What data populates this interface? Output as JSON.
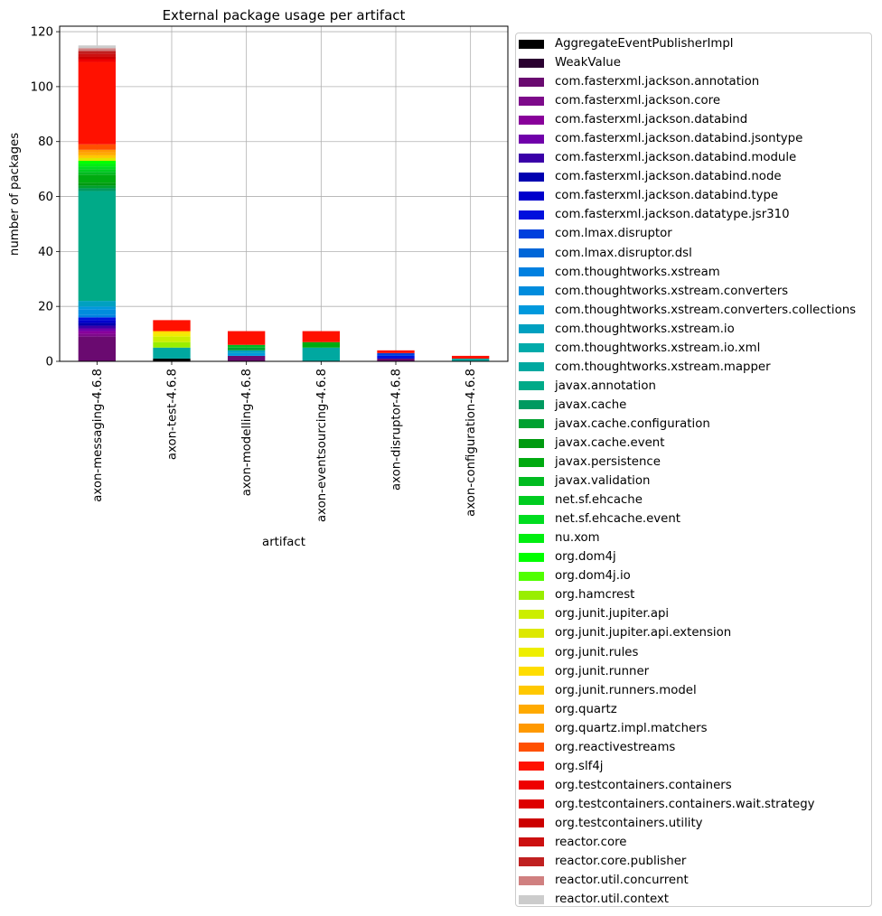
{
  "chart_data": {
    "type": "bar",
    "stacked": true,
    "title": "External package usage per artifact",
    "xlabel": "artifact",
    "ylabel": "number of packages",
    "ylim": [
      0,
      122
    ],
    "yticks": [
      0,
      20,
      40,
      60,
      80,
      100,
      120
    ],
    "grid": true,
    "legend_position": "outside-right",
    "categories": [
      "axon-messaging-4.6.8",
      "axon-test-4.6.8",
      "axon-modelling-4.6.8",
      "axon-eventsourcing-4.6.8",
      "axon-disruptor-4.6.8",
      "axon-configuration-4.6.8"
    ],
    "series": [
      {
        "name": "AggregateEventPublisherImpl",
        "color": "#000000",
        "values": [
          0,
          1,
          0,
          0,
          0,
          0
        ]
      },
      {
        "name": "WeakValue",
        "color": "#2a0030",
        "values": [
          0,
          0,
          0,
          0,
          0,
          0
        ]
      },
      {
        "name": "com.fasterxml.jackson.annotation",
        "color": "#6a0a70",
        "values": [
          9,
          0,
          2,
          0,
          1,
          0
        ]
      },
      {
        "name": "com.fasterxml.jackson.core",
        "color": "#7d0a8a",
        "values": [
          1,
          0,
          0,
          0,
          0,
          0
        ]
      },
      {
        "name": "com.fasterxml.jackson.databind",
        "color": "#88009a",
        "values": [
          1,
          0,
          0,
          0,
          0,
          0
        ]
      },
      {
        "name": "com.fasterxml.jackson.databind.jsontype",
        "color": "#7000aa",
        "values": [
          1,
          0,
          0,
          0,
          0,
          0
        ]
      },
      {
        "name": "com.fasterxml.jackson.databind.module",
        "color": "#3a00a8",
        "values": [
          1,
          0,
          0,
          0,
          0,
          0
        ]
      },
      {
        "name": "com.fasterxml.jackson.databind.node",
        "color": "#0000b0",
        "values": [
          1,
          0,
          0,
          0,
          0,
          0
        ]
      },
      {
        "name": "com.fasterxml.jackson.databind.type",
        "color": "#0000cc",
        "values": [
          1,
          0,
          0,
          0,
          0,
          0
        ]
      },
      {
        "name": "com.fasterxml.jackson.datatype.jsr310",
        "color": "#0010dd",
        "values": [
          1,
          0,
          0,
          0,
          1,
          0
        ]
      },
      {
        "name": "com.lmax.disruptor",
        "color": "#0040dd",
        "values": [
          0,
          0,
          0,
          0,
          1,
          0
        ]
      },
      {
        "name": "com.lmax.disruptor.dsl",
        "color": "#0066d8",
        "values": [
          0,
          0,
          0,
          0,
          0,
          0
        ]
      },
      {
        "name": "com.thoughtworks.xstream",
        "color": "#0080e0",
        "values": [
          1,
          0,
          0,
          0,
          0,
          0
        ]
      },
      {
        "name": "com.thoughtworks.xstream.converters",
        "color": "#008cdd",
        "values": [
          2,
          0,
          0,
          0,
          0,
          0
        ]
      },
      {
        "name": "com.thoughtworks.xstream.converters.collections",
        "color": "#0099dd",
        "values": [
          1,
          0,
          1,
          0,
          0,
          0
        ]
      },
      {
        "name": "com.thoughtworks.xstream.io",
        "color": "#00a0c0",
        "values": [
          2,
          0,
          1,
          0,
          0,
          0
        ]
      },
      {
        "name": "com.thoughtworks.xstream.io.xml",
        "color": "#00aaaa",
        "values": [
          0,
          0,
          0,
          0,
          0,
          0
        ]
      },
      {
        "name": "com.thoughtworks.xstream.mapper",
        "color": "#00a8a0",
        "values": [
          0,
          4,
          0,
          5,
          0,
          1
        ]
      },
      {
        "name": "javax.annotation",
        "color": "#00aa88",
        "values": [
          40,
          0,
          0,
          0,
          0,
          0
        ]
      },
      {
        "name": "javax.cache",
        "color": "#009a60",
        "values": [
          1,
          0,
          0,
          0,
          0,
          0
        ]
      },
      {
        "name": "javax.cache.configuration",
        "color": "#00a030",
        "values": [
          1,
          0,
          1,
          0,
          0,
          0
        ]
      },
      {
        "name": "javax.cache.event",
        "color": "#009a10",
        "values": [
          1,
          0,
          0,
          0,
          0,
          0
        ]
      },
      {
        "name": "javax.persistence",
        "color": "#00aa10",
        "values": [
          3,
          0,
          0,
          2,
          0,
          0
        ]
      },
      {
        "name": "javax.validation",
        "color": "#00bb20",
        "values": [
          1,
          0,
          1,
          0,
          0,
          0
        ]
      },
      {
        "name": "net.sf.ehcache",
        "color": "#00cc20",
        "values": [
          1,
          0,
          0,
          0,
          0,
          0
        ]
      },
      {
        "name": "net.sf.ehcache.event",
        "color": "#00dd20",
        "values": [
          1,
          0,
          0,
          0,
          0,
          0
        ]
      },
      {
        "name": "nu.xom",
        "color": "#00ee10",
        "values": [
          1,
          0,
          0,
          0,
          0,
          0
        ]
      },
      {
        "name": "org.dom4j",
        "color": "#00ff00",
        "values": [
          1,
          0,
          0,
          0,
          0,
          0
        ]
      },
      {
        "name": "org.dom4j.io",
        "color": "#50ff00",
        "values": [
          0,
          0,
          0,
          0,
          0,
          0
        ]
      },
      {
        "name": "org.hamcrest",
        "color": "#99ee00",
        "values": [
          0,
          2,
          0,
          0,
          0,
          0
        ]
      },
      {
        "name": "org.junit.jupiter.api",
        "color": "#ccee00",
        "values": [
          0,
          2,
          0,
          0,
          0,
          0
        ]
      },
      {
        "name": "org.junit.jupiter.api.extension",
        "color": "#dde800",
        "values": [
          1,
          0,
          0,
          0,
          0,
          0
        ]
      },
      {
        "name": "org.junit.rules",
        "color": "#eeee00",
        "values": [
          0,
          1,
          0,
          0,
          0,
          0
        ]
      },
      {
        "name": "org.junit.runner",
        "color": "#ffdd00",
        "values": [
          0,
          1,
          0,
          0,
          0,
          0
        ]
      },
      {
        "name": "org.junit.runners.model",
        "color": "#ffc800",
        "values": [
          1,
          0,
          0,
          0,
          0,
          0
        ]
      },
      {
        "name": "org.quartz",
        "color": "#ffaa00",
        "values": [
          1,
          0,
          0,
          0,
          0,
          0
        ]
      },
      {
        "name": "org.quartz.impl.matchers",
        "color": "#ff9900",
        "values": [
          1,
          0,
          0,
          0,
          0,
          0
        ]
      },
      {
        "name": "org.reactivestreams",
        "color": "#ff5000",
        "values": [
          2,
          0,
          0,
          0,
          0,
          0
        ]
      },
      {
        "name": "org.slf4j",
        "color": "#ff1100",
        "values": [
          30,
          4,
          5,
          4,
          1,
          1
        ]
      },
      {
        "name": "org.testcontainers.containers",
        "color": "#ee0000",
        "values": [
          1,
          0,
          0,
          0,
          0,
          0
        ]
      },
      {
        "name": "org.testcontainers.containers.wait.strategy",
        "color": "#dd0000",
        "values": [
          0,
          0,
          0,
          0,
          0,
          0
        ]
      },
      {
        "name": "org.testcontainers.utility",
        "color": "#cc0000",
        "values": [
          1,
          0,
          0,
          0,
          0,
          0
        ]
      },
      {
        "name": "reactor.core",
        "color": "#cc1010",
        "values": [
          1,
          0,
          0,
          0,
          0,
          0
        ]
      },
      {
        "name": "reactor.core.publisher",
        "color": "#c02020",
        "values": [
          1,
          0,
          0,
          0,
          0,
          0
        ]
      },
      {
        "name": "reactor.util.concurrent",
        "color": "#d08080",
        "values": [
          1,
          0,
          0,
          0,
          0,
          0
        ]
      },
      {
        "name": "reactor.util.context",
        "color": "#cccccc",
        "values": [
          1,
          0,
          0,
          0,
          0,
          0
        ]
      }
    ]
  }
}
